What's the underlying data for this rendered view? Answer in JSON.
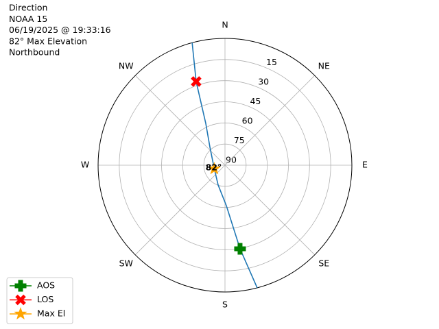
{
  "chart_data": {
    "type": "polar",
    "title": [
      "Direction",
      "NOAA 15",
      "06/19/2025 @ 19:33:16",
      "82° Max Elevation",
      "Northbound"
    ],
    "rlim": [
      90,
      0
    ],
    "rticks": [
      15,
      30,
      45,
      60,
      75,
      90
    ],
    "thetaticks": [
      {
        "value": 0,
        "label": "N"
      },
      {
        "value": 45,
        "label": "NE"
      },
      {
        "value": 90,
        "label": "E"
      },
      {
        "value": 135,
        "label": "SE"
      },
      {
        "value": 180,
        "label": "S"
      },
      {
        "value": 225,
        "label": "SW"
      },
      {
        "value": 270,
        "label": "W"
      },
      {
        "value": 315,
        "label": "NW"
      }
    ],
    "grid": true,
    "legend": "lower left",
    "series": [
      {
        "color": "#1f77b4",
        "marker": "none",
        "az": [
          165.3,
          169.8,
          178.1,
          199,
          251.6,
          319.8,
          335.3,
          341,
          345
        ],
        "el": [
          0,
          29.7,
          61.3,
          75.1,
          82,
          73.5,
          57.4,
          27.2,
          0
        ]
      },
      {
        "name": "AOS",
        "color": "green",
        "marker": "plus",
        "az": [
          169.8
        ],
        "el": [
          29.7
        ]
      },
      {
        "name": "LOS",
        "color": "red",
        "marker": "x",
        "az": [
          341
        ],
        "el": [
          27.2
        ]
      },
      {
        "name": "Max El",
        "color": "orange",
        "marker": "star",
        "az": [
          251.6
        ],
        "el": [
          82
        ],
        "value_labels": [
          "82°"
        ]
      }
    ]
  }
}
